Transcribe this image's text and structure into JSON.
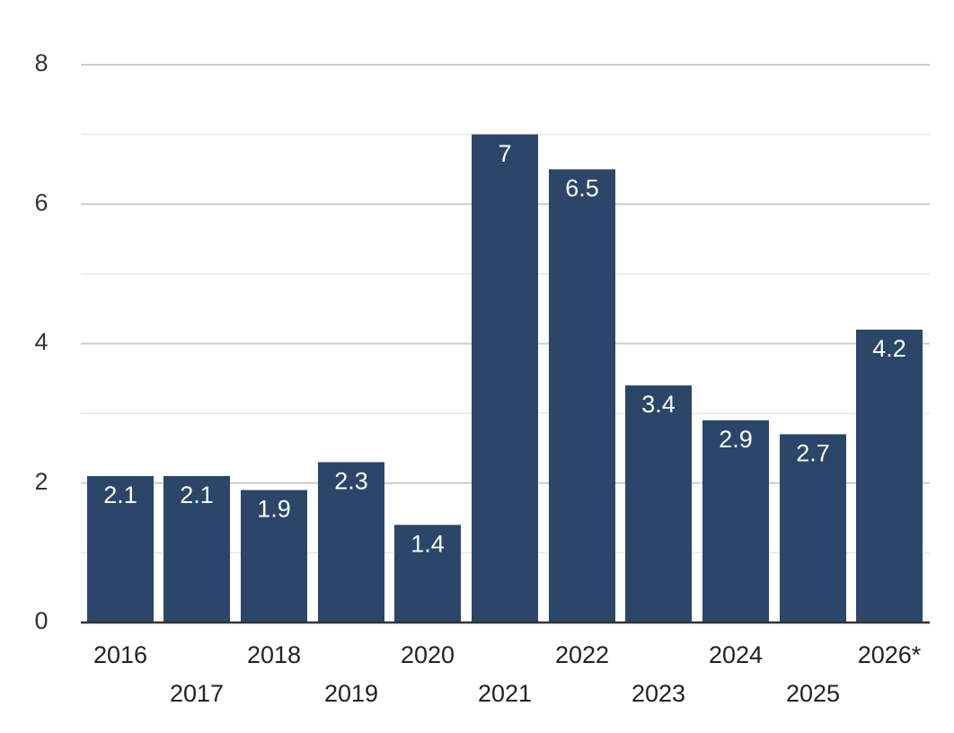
{
  "colors": {
    "bar": "#2b4669",
    "grid_major": "#cccccc",
    "grid_minor": "#e6e6e6",
    "axis": "#333333",
    "bar_label": "#ffffff"
  },
  "chart_data": {
    "type": "bar",
    "title": "",
    "xlabel": "",
    "ylabel": "",
    "categories": [
      "2016",
      "2017",
      "2018",
      "2019",
      "2020",
      "2021",
      "2022",
      "2023",
      "2024",
      "2025",
      "2026*"
    ],
    "values": [
      2.1,
      2.1,
      1.9,
      2.3,
      1.4,
      7,
      6.5,
      3.4,
      2.9,
      2.7,
      4.2
    ],
    "value_labels": [
      "2.1",
      "2.1",
      "1.9",
      "2.3",
      "1.4",
      "7",
      "6.5",
      "3.4",
      "2.9",
      "2.7",
      "4.2"
    ],
    "ylim": [
      0,
      8
    ],
    "yticks": [
      "0",
      "2",
      "4",
      "6",
      "8"
    ],
    "grid": true,
    "legend": "none"
  }
}
